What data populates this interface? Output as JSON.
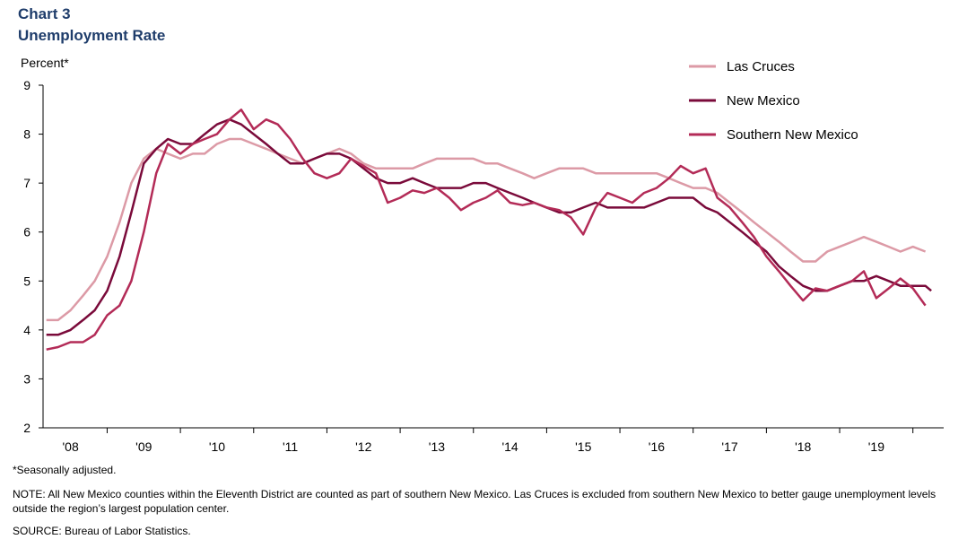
{
  "chart_data": {
    "type": "line",
    "title": "Chart 3",
    "subtitle": "Unemployment  Rate",
    "ylabel": "Percent*",
    "ylim": [
      2,
      9
    ],
    "yticks": [
      2,
      3,
      4,
      5,
      6,
      7,
      8,
      9
    ],
    "xlim": [
      2007.625,
      2019.92
    ],
    "xticks": [
      {
        "label": "'08",
        "pos": 2008.0
      },
      {
        "label": "'09",
        "pos": 2009.0
      },
      {
        "label": "'10",
        "pos": 2010.0
      },
      {
        "label": "'11",
        "pos": 2011.0
      },
      {
        "label": "'12",
        "pos": 2012.0
      },
      {
        "label": "'13",
        "pos": 2013.0
      },
      {
        "label": "'14",
        "pos": 2014.0
      },
      {
        "label": "'15",
        "pos": 2015.0
      },
      {
        "label": "'16",
        "pos": 2016.0
      },
      {
        "label": "'17",
        "pos": 2017.0
      },
      {
        "label": "'18",
        "pos": 2018.0
      },
      {
        "label": "'19",
        "pos": 2019.0
      }
    ],
    "grid": false,
    "legend_position": "top-right",
    "series": [
      {
        "name": "Las Cruces",
        "color": "#dc9aa6",
        "points": [
          [
            2007.67,
            4.2
          ],
          [
            2007.83,
            4.2
          ],
          [
            2008.0,
            4.4
          ],
          [
            2008.17,
            4.7
          ],
          [
            2008.33,
            5.0
          ],
          [
            2008.5,
            5.5
          ],
          [
            2008.67,
            6.2
          ],
          [
            2008.83,
            7.0
          ],
          [
            2009.0,
            7.5
          ],
          [
            2009.17,
            7.7
          ],
          [
            2009.33,
            7.6
          ],
          [
            2009.5,
            7.5
          ],
          [
            2009.67,
            7.6
          ],
          [
            2009.83,
            7.6
          ],
          [
            2010.0,
            7.8
          ],
          [
            2010.17,
            7.9
          ],
          [
            2010.33,
            7.9
          ],
          [
            2010.5,
            7.8
          ],
          [
            2010.67,
            7.7
          ],
          [
            2010.83,
            7.6
          ],
          [
            2011.0,
            7.5
          ],
          [
            2011.17,
            7.4
          ],
          [
            2011.33,
            7.5
          ],
          [
            2011.5,
            7.6
          ],
          [
            2011.67,
            7.7
          ],
          [
            2011.83,
            7.6
          ],
          [
            2012.0,
            7.4
          ],
          [
            2012.17,
            7.3
          ],
          [
            2012.33,
            7.3
          ],
          [
            2012.5,
            7.3
          ],
          [
            2012.67,
            7.3
          ],
          [
            2012.83,
            7.4
          ],
          [
            2013.0,
            7.5
          ],
          [
            2013.17,
            7.5
          ],
          [
            2013.33,
            7.5
          ],
          [
            2013.5,
            7.5
          ],
          [
            2013.67,
            7.4
          ],
          [
            2013.83,
            7.4
          ],
          [
            2014.0,
            7.3
          ],
          [
            2014.17,
            7.2
          ],
          [
            2014.33,
            7.1
          ],
          [
            2014.5,
            7.2
          ],
          [
            2014.67,
            7.3
          ],
          [
            2014.83,
            7.3
          ],
          [
            2015.0,
            7.3
          ],
          [
            2015.17,
            7.2
          ],
          [
            2015.33,
            7.2
          ],
          [
            2015.5,
            7.2
          ],
          [
            2015.67,
            7.2
          ],
          [
            2015.83,
            7.2
          ],
          [
            2016.0,
            7.2
          ],
          [
            2016.17,
            7.1
          ],
          [
            2016.33,
            7.0
          ],
          [
            2016.5,
            6.9
          ],
          [
            2016.67,
            6.9
          ],
          [
            2016.83,
            6.8
          ],
          [
            2017.0,
            6.6
          ],
          [
            2017.17,
            6.4
          ],
          [
            2017.33,
            6.2
          ],
          [
            2017.5,
            6.0
          ],
          [
            2017.67,
            5.8
          ],
          [
            2017.83,
            5.6
          ],
          [
            2018.0,
            5.4
          ],
          [
            2018.17,
            5.4
          ],
          [
            2018.33,
            5.6
          ],
          [
            2018.5,
            5.7
          ],
          [
            2018.67,
            5.8
          ],
          [
            2018.83,
            5.9
          ],
          [
            2019.0,
            5.8
          ],
          [
            2019.17,
            5.7
          ],
          [
            2019.33,
            5.6
          ],
          [
            2019.5,
            5.7
          ],
          [
            2019.67,
            5.6
          ]
        ]
      },
      {
        "name": "New Mexico",
        "color": "#7a0a3a",
        "points": [
          [
            2007.67,
            3.9
          ],
          [
            2007.83,
            3.9
          ],
          [
            2008.0,
            4.0
          ],
          [
            2008.17,
            4.2
          ],
          [
            2008.33,
            4.4
          ],
          [
            2008.5,
            4.8
          ],
          [
            2008.67,
            5.5
          ],
          [
            2008.83,
            6.4
          ],
          [
            2009.0,
            7.4
          ],
          [
            2009.17,
            7.7
          ],
          [
            2009.33,
            7.9
          ],
          [
            2009.5,
            7.8
          ],
          [
            2009.67,
            7.8
          ],
          [
            2009.83,
            8.0
          ],
          [
            2010.0,
            8.2
          ],
          [
            2010.17,
            8.3
          ],
          [
            2010.33,
            8.2
          ],
          [
            2010.5,
            8.0
          ],
          [
            2010.67,
            7.8
          ],
          [
            2010.83,
            7.6
          ],
          [
            2011.0,
            7.4
          ],
          [
            2011.17,
            7.4
          ],
          [
            2011.33,
            7.5
          ],
          [
            2011.5,
            7.6
          ],
          [
            2011.67,
            7.6
          ],
          [
            2011.83,
            7.5
          ],
          [
            2012.0,
            7.3
          ],
          [
            2012.17,
            7.1
          ],
          [
            2012.33,
            7.0
          ],
          [
            2012.5,
            7.0
          ],
          [
            2012.67,
            7.1
          ],
          [
            2012.83,
            7.0
          ],
          [
            2013.0,
            6.9
          ],
          [
            2013.17,
            6.9
          ],
          [
            2013.33,
            6.9
          ],
          [
            2013.5,
            7.0
          ],
          [
            2013.67,
            7.0
          ],
          [
            2013.83,
            6.9
          ],
          [
            2014.0,
            6.8
          ],
          [
            2014.17,
            6.7
          ],
          [
            2014.33,
            6.6
          ],
          [
            2014.5,
            6.5
          ],
          [
            2014.67,
            6.4
          ],
          [
            2014.83,
            6.4
          ],
          [
            2015.0,
            6.5
          ],
          [
            2015.17,
            6.6
          ],
          [
            2015.33,
            6.5
          ],
          [
            2015.5,
            6.5
          ],
          [
            2015.67,
            6.5
          ],
          [
            2015.83,
            6.5
          ],
          [
            2016.0,
            6.6
          ],
          [
            2016.17,
            6.7
          ],
          [
            2016.33,
            6.7
          ],
          [
            2016.5,
            6.7
          ],
          [
            2016.67,
            6.5
          ],
          [
            2016.83,
            6.4
          ],
          [
            2017.0,
            6.2
          ],
          [
            2017.17,
            6.0
          ],
          [
            2017.33,
            5.8
          ],
          [
            2017.5,
            5.6
          ],
          [
            2017.67,
            5.3
          ],
          [
            2017.83,
            5.1
          ],
          [
            2018.0,
            4.9
          ],
          [
            2018.17,
            4.8
          ],
          [
            2018.33,
            4.8
          ],
          [
            2018.5,
            4.9
          ],
          [
            2018.67,
            5.0
          ],
          [
            2018.83,
            5.0
          ],
          [
            2019.0,
            5.1
          ],
          [
            2019.17,
            5.0
          ],
          [
            2019.33,
            4.9
          ],
          [
            2019.5,
            4.9
          ],
          [
            2019.67,
            4.9
          ],
          [
            2019.75,
            4.8
          ]
        ]
      },
      {
        "name": "Southern New Mexico",
        "color": "#b32b57",
        "points": [
          [
            2007.67,
            3.6
          ],
          [
            2007.83,
            3.65
          ],
          [
            2008.0,
            3.75
          ],
          [
            2008.17,
            3.75
          ],
          [
            2008.33,
            3.9
          ],
          [
            2008.5,
            4.3
          ],
          [
            2008.67,
            4.5
          ],
          [
            2008.83,
            5.0
          ],
          [
            2009.0,
            6.0
          ],
          [
            2009.17,
            7.2
          ],
          [
            2009.33,
            7.8
          ],
          [
            2009.5,
            7.6
          ],
          [
            2009.67,
            7.8
          ],
          [
            2009.83,
            7.9
          ],
          [
            2010.0,
            8.0
          ],
          [
            2010.17,
            8.3
          ],
          [
            2010.33,
            8.5
          ],
          [
            2010.5,
            8.1
          ],
          [
            2010.67,
            8.3
          ],
          [
            2010.83,
            8.2
          ],
          [
            2011.0,
            7.9
          ],
          [
            2011.17,
            7.5
          ],
          [
            2011.33,
            7.2
          ],
          [
            2011.5,
            7.1
          ],
          [
            2011.67,
            7.2
          ],
          [
            2011.83,
            7.5
          ],
          [
            2012.0,
            7.35
          ],
          [
            2012.17,
            7.2
          ],
          [
            2012.33,
            6.6
          ],
          [
            2012.5,
            6.7
          ],
          [
            2012.67,
            6.85
          ],
          [
            2012.83,
            6.8
          ],
          [
            2013.0,
            6.9
          ],
          [
            2013.17,
            6.7
          ],
          [
            2013.33,
            6.45
          ],
          [
            2013.5,
            6.6
          ],
          [
            2013.67,
            6.7
          ],
          [
            2013.83,
            6.85
          ],
          [
            2014.0,
            6.6
          ],
          [
            2014.17,
            6.55
          ],
          [
            2014.33,
            6.6
          ],
          [
            2014.5,
            6.5
          ],
          [
            2014.67,
            6.45
          ],
          [
            2014.83,
            6.3
          ],
          [
            2015.0,
            5.95
          ],
          [
            2015.17,
            6.5
          ],
          [
            2015.33,
            6.8
          ],
          [
            2015.5,
            6.7
          ],
          [
            2015.67,
            6.6
          ],
          [
            2015.83,
            6.8
          ],
          [
            2016.0,
            6.9
          ],
          [
            2016.17,
            7.1
          ],
          [
            2016.33,
            7.35
          ],
          [
            2016.5,
            7.2
          ],
          [
            2016.67,
            7.3
          ],
          [
            2016.83,
            6.7
          ],
          [
            2017.0,
            6.5
          ],
          [
            2017.17,
            6.2
          ],
          [
            2017.33,
            5.9
          ],
          [
            2017.5,
            5.5
          ],
          [
            2017.67,
            5.2
          ],
          [
            2017.83,
            4.9
          ],
          [
            2018.0,
            4.6
          ],
          [
            2018.17,
            4.85
          ],
          [
            2018.33,
            4.8
          ],
          [
            2018.5,
            4.9
          ],
          [
            2018.67,
            5.0
          ],
          [
            2018.83,
            5.2
          ],
          [
            2019.0,
            4.65
          ],
          [
            2019.17,
            4.85
          ],
          [
            2019.33,
            5.05
          ],
          [
            2019.5,
            4.85
          ],
          [
            2019.67,
            4.5
          ]
        ]
      }
    ]
  },
  "footnotes": {
    "seasonal": "*Seasonally adjusted.",
    "note": "NOTE: All New Mexico counties within the Eleventh District are counted as part of southern New Mexico. Las Cruces is excluded from southern New Mexico to better gauge unemployment levels outside the region’s largest population center.",
    "source": "SOURCE:  Bureau of Labor Statistics."
  }
}
